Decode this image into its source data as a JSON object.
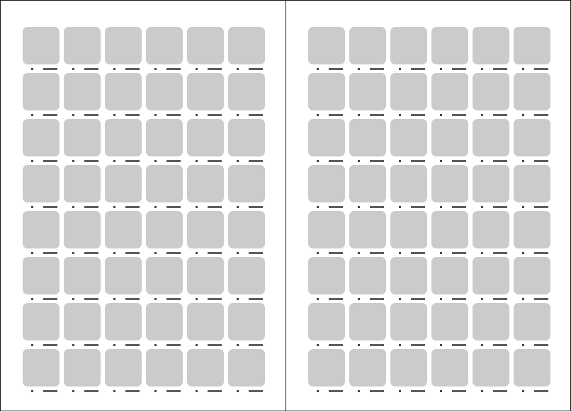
{
  "document": {
    "pages": [
      {
        "id": "left",
        "rows": 8,
        "columns": 6
      },
      {
        "id": "right",
        "rows": 8,
        "columns": 6
      }
    ],
    "colors": {
      "thumbnail_fill": "#cbcbcd",
      "marker": "#4a4a4a",
      "label_bar": "#5f5f5f",
      "page_border": "#1a1a1a",
      "background": "#ffffff"
    }
  }
}
